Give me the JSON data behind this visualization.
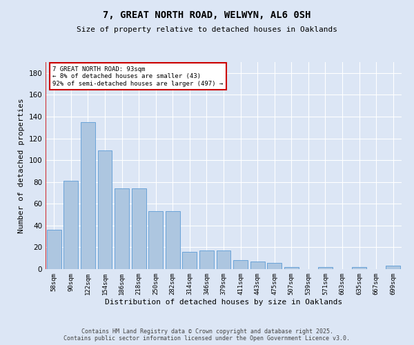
{
  "title1": "7, GREAT NORTH ROAD, WELWYN, AL6 0SH",
  "title2": "Size of property relative to detached houses in Oaklands",
  "xlabel": "Distribution of detached houses by size in Oaklands",
  "ylabel": "Number of detached properties",
  "categories": [
    "58sqm",
    "90sqm",
    "122sqm",
    "154sqm",
    "186sqm",
    "218sqm",
    "250sqm",
    "282sqm",
    "314sqm",
    "346sqm",
    "379sqm",
    "411sqm",
    "443sqm",
    "475sqm",
    "507sqm",
    "539sqm",
    "571sqm",
    "603sqm",
    "635sqm",
    "667sqm",
    "699sqm"
  ],
  "values": [
    36,
    81,
    135,
    109,
    74,
    74,
    53,
    53,
    16,
    17,
    17,
    8,
    7,
    6,
    2,
    0,
    2,
    0,
    2,
    0,
    3
  ],
  "bar_color": "#adc6e0",
  "bar_edge_color": "#5b9bd5",
  "background_color": "#dce6f5",
  "grid_color": "#ffffff",
  "annotation_text_line1": "7 GREAT NORTH ROAD: 93sqm",
  "annotation_text_line2": "← 8% of detached houses are smaller (43)",
  "annotation_text_line3": "92% of semi-detached houses are larger (497) →",
  "annotation_box_color": "#ffffff",
  "annotation_box_edge_color": "#cc0000",
  "red_line_x": -0.5,
  "ylim": [
    0,
    190
  ],
  "yticks": [
    0,
    20,
    40,
    60,
    80,
    100,
    120,
    140,
    160,
    180
  ],
  "footer_line1": "Contains HM Land Registry data © Crown copyright and database right 2025.",
  "footer_line2": "Contains public sector information licensed under the Open Government Licence v3.0."
}
